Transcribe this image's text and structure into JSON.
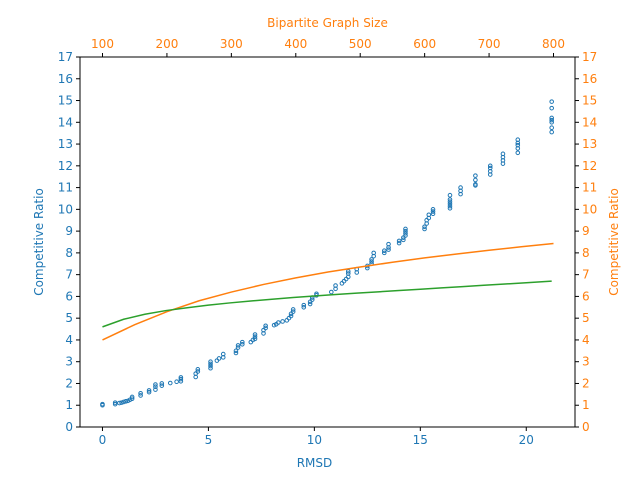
{
  "colors": {
    "scatter": "#1f77b4",
    "orange": "#ff7f0e",
    "green": "#2ca02c",
    "axis": "#000000"
  },
  "chart_data": {
    "type": "scatter",
    "title": "",
    "xlabel": "RMSD",
    "ylabel_left": "Competitive Ratio",
    "ylabel_right": "Competitive Ratio",
    "xlabel_top": "Bipartite Graph Size",
    "xlim": [
      -1.06,
      22.3
    ],
    "ylim": [
      0,
      17
    ],
    "xlim_top": [
      100,
      800
    ],
    "x_ticks": [
      0,
      5,
      10,
      15,
      20
    ],
    "x_ticks_top": [
      100,
      200,
      300,
      400,
      500,
      600,
      700,
      800
    ],
    "y_ticks": [
      0,
      1,
      2,
      3,
      4,
      5,
      6,
      7,
      8,
      9,
      10,
      11,
      12,
      13,
      14,
      15,
      16,
      17
    ],
    "grid": false,
    "series": [
      {
        "marker": "hollow-circle",
        "axis": "bottom-left",
        "points": [
          [
            0.0,
            1.0
          ],
          [
            0.0,
            1.05
          ],
          [
            0.6,
            1.05
          ],
          [
            0.6,
            1.12
          ],
          [
            0.8,
            1.1
          ],
          [
            0.9,
            1.12
          ],
          [
            1.0,
            1.15
          ],
          [
            1.1,
            1.18
          ],
          [
            1.2,
            1.2
          ],
          [
            1.3,
            1.25
          ],
          [
            1.4,
            1.3
          ],
          [
            1.4,
            1.38
          ],
          [
            1.8,
            1.45
          ],
          [
            1.8,
            1.55
          ],
          [
            2.2,
            1.6
          ],
          [
            2.2,
            1.68
          ],
          [
            2.5,
            1.72
          ],
          [
            2.5,
            1.85
          ],
          [
            2.5,
            1.95
          ],
          [
            2.8,
            1.9
          ],
          [
            2.8,
            2.0
          ],
          [
            3.2,
            2.02
          ],
          [
            3.5,
            2.08
          ],
          [
            3.7,
            2.1
          ],
          [
            3.7,
            2.2
          ],
          [
            3.7,
            2.28
          ],
          [
            4.4,
            2.3
          ],
          [
            4.4,
            2.45
          ],
          [
            4.5,
            2.55
          ],
          [
            4.5,
            2.65
          ],
          [
            5.1,
            2.7
          ],
          [
            5.1,
            2.8
          ],
          [
            5.1,
            2.9
          ],
          [
            5.1,
            3.0
          ],
          [
            5.4,
            3.05
          ],
          [
            5.5,
            3.15
          ],
          [
            5.7,
            3.2
          ],
          [
            5.7,
            3.35
          ],
          [
            6.3,
            3.4
          ],
          [
            6.3,
            3.5
          ],
          [
            6.4,
            3.65
          ],
          [
            6.4,
            3.75
          ],
          [
            6.6,
            3.8
          ],
          [
            6.6,
            3.9
          ],
          [
            7.0,
            3.9
          ],
          [
            7.1,
            4.0
          ],
          [
            7.2,
            4.05
          ],
          [
            7.2,
            4.15
          ],
          [
            7.2,
            4.25
          ],
          [
            7.6,
            4.3
          ],
          [
            7.6,
            4.45
          ],
          [
            7.7,
            4.55
          ],
          [
            7.7,
            4.65
          ],
          [
            8.1,
            4.68
          ],
          [
            8.2,
            4.72
          ],
          [
            8.3,
            4.8
          ],
          [
            8.5,
            4.85
          ],
          [
            8.7,
            4.9
          ],
          [
            8.8,
            5.0
          ],
          [
            8.9,
            5.1
          ],
          [
            8.9,
            5.2
          ],
          [
            9.0,
            5.3
          ],
          [
            9.0,
            5.4
          ],
          [
            9.5,
            5.5
          ],
          [
            9.5,
            5.6
          ],
          [
            9.8,
            5.65
          ],
          [
            9.8,
            5.75
          ],
          [
            9.9,
            5.85
          ],
          [
            9.9,
            5.95
          ],
          [
            10.1,
            6.05
          ],
          [
            10.1,
            6.12
          ],
          [
            10.8,
            6.2
          ],
          [
            11.0,
            6.35
          ],
          [
            11.0,
            6.5
          ],
          [
            11.3,
            6.6
          ],
          [
            11.4,
            6.7
          ],
          [
            11.5,
            6.8
          ],
          [
            11.6,
            6.9
          ],
          [
            11.6,
            7.05
          ],
          [
            11.6,
            7.15
          ],
          [
            12.0,
            7.1
          ],
          [
            12.0,
            7.25
          ],
          [
            12.5,
            7.3
          ],
          [
            12.5,
            7.4
          ],
          [
            12.7,
            7.5
          ],
          [
            12.7,
            7.6
          ],
          [
            12.7,
            7.7
          ],
          [
            12.8,
            7.85
          ],
          [
            12.8,
            8.0
          ],
          [
            13.3,
            8.0
          ],
          [
            13.3,
            8.1
          ],
          [
            13.5,
            8.15
          ],
          [
            13.5,
            8.25
          ],
          [
            13.5,
            8.4
          ],
          [
            14.0,
            8.45
          ],
          [
            14.0,
            8.55
          ],
          [
            14.2,
            8.6
          ],
          [
            14.2,
            8.7
          ],
          [
            14.3,
            8.8
          ],
          [
            14.3,
            8.9
          ],
          [
            14.3,
            9.0
          ],
          [
            14.3,
            9.1
          ],
          [
            15.2,
            9.1
          ],
          [
            15.2,
            9.2
          ],
          [
            15.3,
            9.35
          ],
          [
            15.3,
            9.5
          ],
          [
            15.4,
            9.6
          ],
          [
            15.4,
            9.75
          ],
          [
            15.6,
            9.8
          ],
          [
            15.6,
            9.9
          ],
          [
            15.6,
            10.0
          ],
          [
            16.4,
            10.05
          ],
          [
            16.4,
            10.15
          ],
          [
            16.4,
            10.25
          ],
          [
            16.4,
            10.35
          ],
          [
            16.4,
            10.45
          ],
          [
            16.4,
            10.65
          ],
          [
            16.9,
            10.7
          ],
          [
            16.9,
            10.85
          ],
          [
            16.9,
            11.0
          ],
          [
            17.6,
            11.1
          ],
          [
            17.6,
            11.15
          ],
          [
            17.6,
            11.35
          ],
          [
            17.6,
            11.55
          ],
          [
            18.3,
            11.6
          ],
          [
            18.3,
            11.75
          ],
          [
            18.3,
            11.9
          ],
          [
            18.3,
            12.0
          ],
          [
            18.9,
            12.1
          ],
          [
            18.9,
            12.25
          ],
          [
            18.9,
            12.4
          ],
          [
            18.9,
            12.55
          ],
          [
            19.6,
            12.6
          ],
          [
            19.6,
            12.8
          ],
          [
            19.6,
            12.95
          ],
          [
            19.6,
            13.05
          ],
          [
            19.6,
            13.2
          ],
          [
            21.2,
            13.55
          ],
          [
            21.2,
            13.75
          ],
          [
            21.2,
            14.0
          ],
          [
            21.2,
            14.1
          ],
          [
            21.2,
            14.2
          ],
          [
            21.2,
            14.65
          ],
          [
            21.2,
            14.95
          ]
        ]
      },
      {
        "line": "orange",
        "axis": "top-right",
        "x": [
          100,
          150,
          200,
          250,
          300,
          350,
          400,
          450,
          500,
          550,
          600,
          650,
          700,
          750,
          800
        ],
        "y": [
          4.0,
          4.7,
          5.3,
          5.8,
          6.2,
          6.55,
          6.85,
          7.12,
          7.35,
          7.57,
          7.77,
          7.95,
          8.12,
          8.28,
          8.43
        ]
      },
      {
        "line": "green",
        "axis": "bottom-left",
        "x": [
          0.0,
          1.0,
          2.0,
          3.0,
          4.0,
          5.0,
          6.0,
          7.0,
          8.0,
          9.0,
          10.0,
          11.0,
          12.0,
          13.0,
          14.0,
          15.0,
          16.0,
          17.0,
          18.0,
          19.0,
          20.0,
          21.2
        ],
        "y": [
          4.6,
          4.95,
          5.18,
          5.35,
          5.48,
          5.6,
          5.7,
          5.79,
          5.87,
          5.95,
          6.02,
          6.09,
          6.15,
          6.21,
          6.27,
          6.33,
          6.39,
          6.45,
          6.51,
          6.57,
          6.63,
          6.7
        ]
      }
    ]
  }
}
